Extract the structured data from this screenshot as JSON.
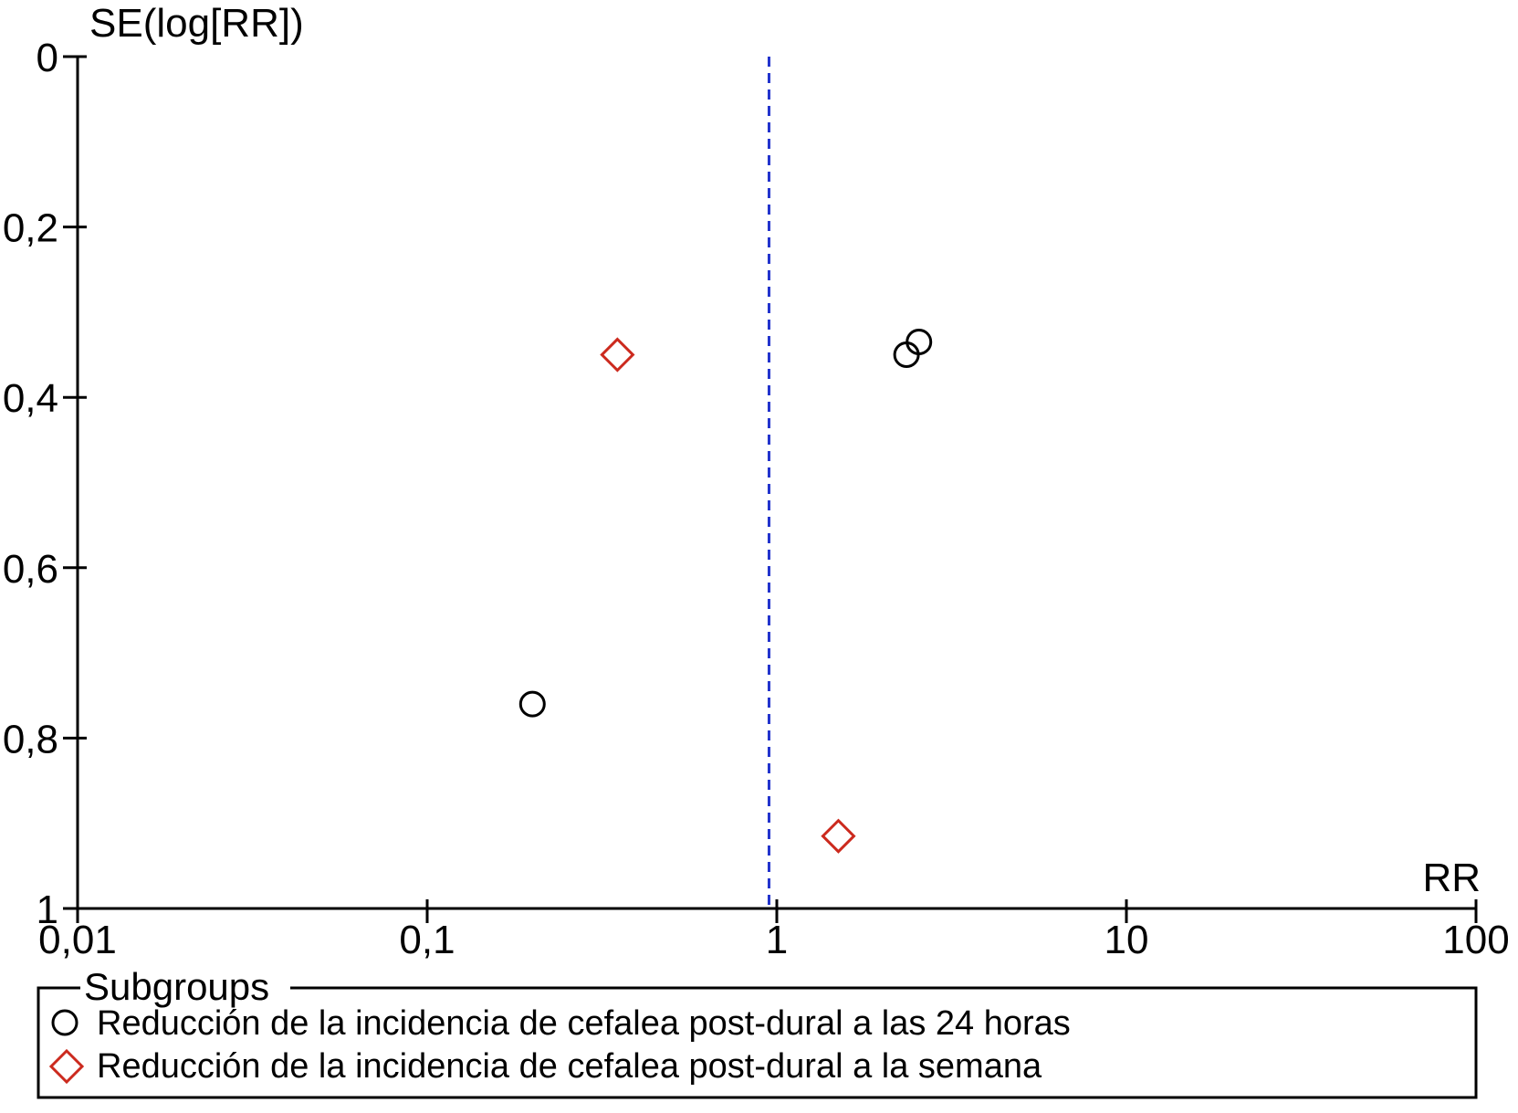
{
  "chart_data": {
    "type": "scatter",
    "title": "",
    "xlabel": "RR",
    "ylabel": "SE(log[RR])",
    "x_scale": "log",
    "y_reversed": true,
    "xlim": [
      0.01,
      100
    ],
    "ylim": [
      0,
      1
    ],
    "x_ticks": [
      {
        "value": 0.01,
        "label": "0,01"
      },
      {
        "value": 0.1,
        "label": "0,1"
      },
      {
        "value": 1,
        "label": "1"
      },
      {
        "value": 10,
        "label": "10"
      },
      {
        "value": 100,
        "label": "100"
      }
    ],
    "y_ticks": [
      {
        "value": 0,
        "label": "0"
      },
      {
        "value": 0.2,
        "label": "0,2"
      },
      {
        "value": 0.4,
        "label": "0,4"
      },
      {
        "value": 0.6,
        "label": "0,6"
      },
      {
        "value": 0.8,
        "label": "0,8"
      },
      {
        "value": 1,
        "label": "1"
      }
    ],
    "reference_line": {
      "x": 0.95,
      "style": "dashed",
      "color": "#2233cc"
    },
    "grid": false,
    "legend": {
      "title": "Subgroups",
      "placement": "bottom"
    },
    "series": [
      {
        "name": "Reducción de la incidencia de cefalea post-dural a las 24 horas",
        "marker": "circle",
        "color": "#000000",
        "points": [
          {
            "x": 0.2,
            "y": 0.76
          },
          {
            "x": 2.35,
            "y": 0.35
          },
          {
            "x": 2.55,
            "y": 0.335
          }
        ]
      },
      {
        "name": "Reducción de la incidencia de cefalea post-dural a la semana",
        "marker": "diamond",
        "color": "#cc2a1e",
        "points": [
          {
            "x": 0.35,
            "y": 0.35
          },
          {
            "x": 1.5,
            "y": 0.915
          }
        ]
      }
    ]
  }
}
